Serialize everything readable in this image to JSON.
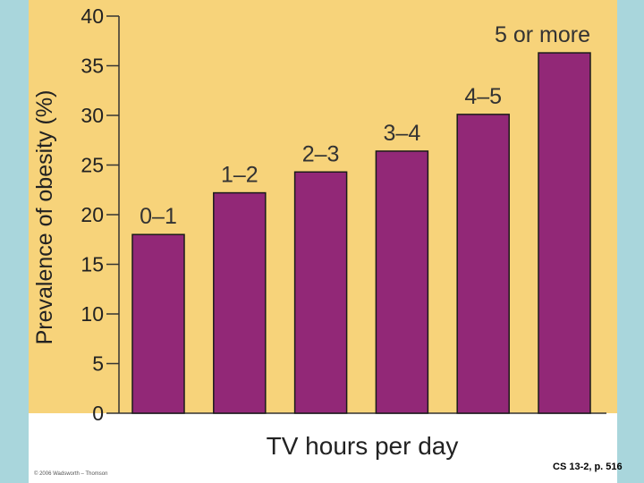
{
  "chart_data": {
    "type": "bar",
    "categories": [
      "0–1",
      "1–2",
      "2–3",
      "3–4",
      "4–5",
      "5 or more"
    ],
    "values": [
      18,
      22.2,
      24.3,
      26.4,
      30.1,
      36.3
    ],
    "xlabel": "TV hours per day",
    "ylabel": "Prevalence of obesity (%)",
    "ylim": [
      0,
      40
    ],
    "yticks": [
      0,
      5,
      10,
      15,
      20,
      25,
      30,
      35,
      40
    ],
    "grid": false,
    "colors": {
      "background": "#f7d37a",
      "bar": "#922877",
      "bar_outline": "#1a1a1a"
    }
  },
  "footer": {
    "copyright": "© 2006 Wadsworth – Thomson",
    "source": "CS 13-2, p. 516"
  }
}
